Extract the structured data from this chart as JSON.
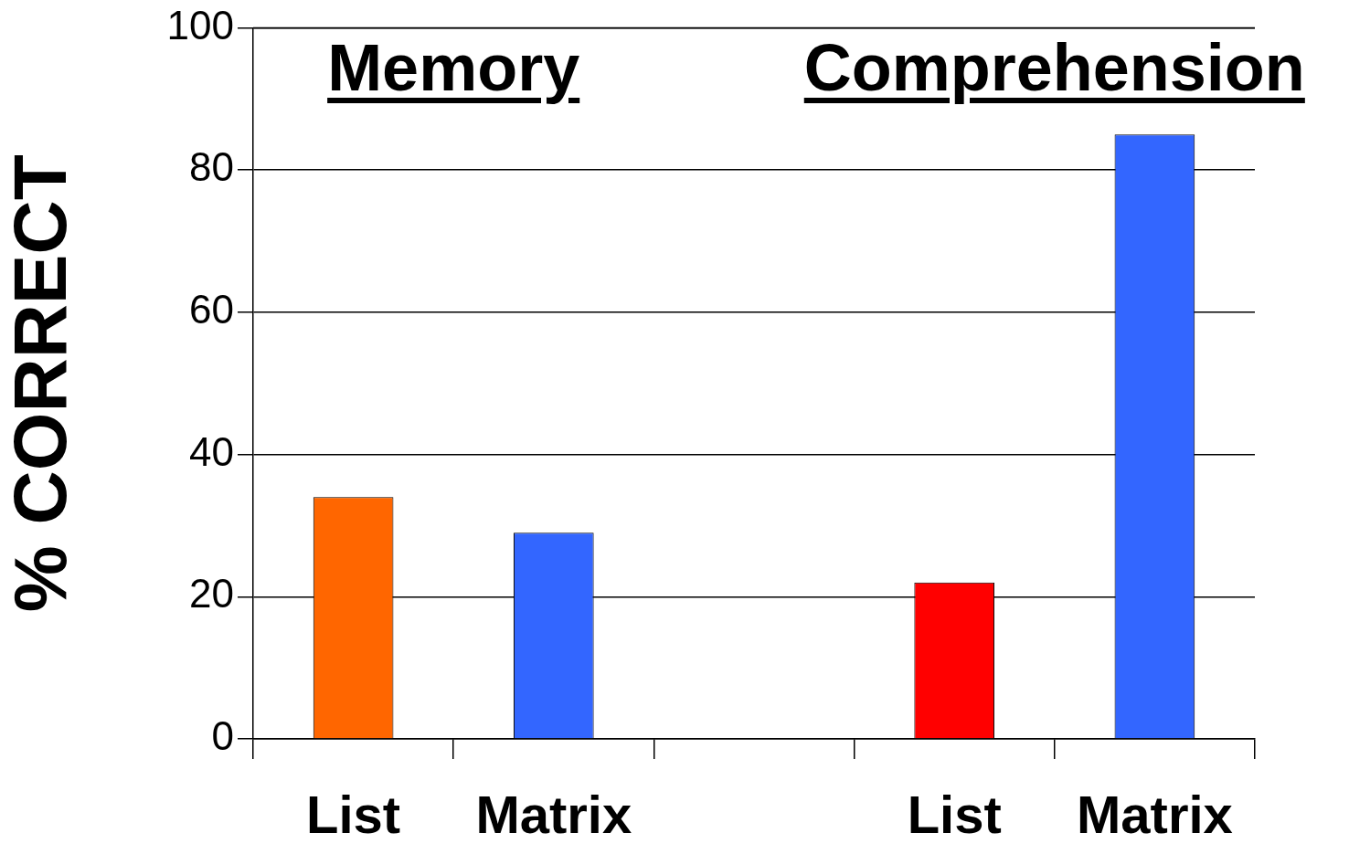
{
  "chart_data": {
    "type": "bar",
    "ylabel": "% CORRECT",
    "categories": [
      "List",
      "Matrix",
      null,
      "List",
      "Matrix"
    ],
    "values": [
      34,
      29,
      null,
      22,
      85
    ],
    "colors": [
      "#ff6600",
      "#3366ff",
      null,
      "#ff0000",
      "#3366ff"
    ],
    "ylim": [
      0,
      100
    ],
    "yticks": [
      0,
      20,
      40,
      60,
      80,
      100
    ],
    "grid": "y",
    "annotations": [
      "Memory",
      "Comprehension"
    ]
  }
}
